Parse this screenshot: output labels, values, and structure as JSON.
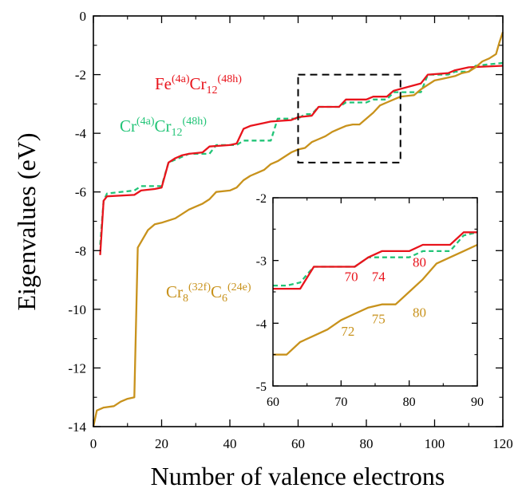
{
  "colors": {
    "fe": "#e8141c",
    "cr": "#22c477",
    "crc": "#c8921c",
    "axis": "#000000"
  },
  "labels": {
    "fe": {
      "main": "Fe",
      "sup1": "(4a)",
      "main2": "Cr",
      "sub2": "12",
      "sup2": "(48h)"
    },
    "cr": {
      "main": "Cr",
      "sup1": "(4a)",
      "main2": "Cr",
      "sub2": "12",
      "sup2": "(48h)"
    },
    "crc": {
      "main": "Cr",
      "sub1": "8",
      "sup1": "(32f)",
      "main2": "C",
      "sub2": "6",
      "sup2": "(24e)"
    }
  },
  "chart_data": [
    {
      "type": "line",
      "xlabel": "Number of valence electrons",
      "ylabel": "Eigenvalues (eV)",
      "xlim": [
        0,
        120
      ],
      "ylim": [
        -14,
        0
      ],
      "xticks": [
        0,
        20,
        40,
        60,
        80,
        100,
        120
      ],
      "yticks": [
        0,
        -2,
        -4,
        -6,
        -8,
        -10,
        -12,
        -14
      ],
      "highlight_box": {
        "x": [
          60,
          90
        ],
        "y": [
          -5,
          -2
        ]
      },
      "series": [
        {
          "name": "Cr(4a)Cr12(48h)",
          "style": "dashed",
          "color": "#22c477",
          "x": [
            2,
            3,
            4,
            12,
            14,
            20,
            22,
            26,
            28,
            34,
            36,
            42,
            44,
            52,
            54,
            60,
            62,
            64,
            66,
            72,
            74,
            80,
            82,
            86,
            88,
            96,
            98,
            104,
            106,
            110,
            112,
            120
          ],
          "y": [
            -7.8,
            -6.3,
            -6.05,
            -5.95,
            -5.8,
            -5.8,
            -5.0,
            -4.8,
            -4.7,
            -4.7,
            -4.4,
            -4.4,
            -4.25,
            -4.25,
            -3.5,
            -3.5,
            -3.35,
            -3.35,
            -3.1,
            -3.1,
            -2.95,
            -2.95,
            -2.85,
            -2.85,
            -2.6,
            -2.6,
            -2.0,
            -2.0,
            -1.9,
            -1.9,
            -1.7,
            -1.6
          ]
        },
        {
          "name": "Fe(4a)Cr12(48h)",
          "style": "solid",
          "color": "#e8141c",
          "x": [
            2,
            3,
            4,
            12,
            14,
            18,
            20,
            22,
            24,
            26,
            28,
            32,
            34,
            40,
            42,
            44,
            46,
            50,
            52,
            58,
            60,
            64,
            66,
            72,
            74,
            80,
            82,
            86,
            88,
            96,
            98,
            104,
            106,
            110,
            120
          ],
          "y": [
            -8.15,
            -6.3,
            -6.15,
            -6.1,
            -5.95,
            -5.9,
            -5.85,
            -5.0,
            -4.85,
            -4.75,
            -4.7,
            -4.65,
            -4.45,
            -4.4,
            -4.35,
            -3.85,
            -3.75,
            -3.65,
            -3.6,
            -3.55,
            -3.45,
            -3.4,
            -3.1,
            -3.1,
            -2.85,
            -2.85,
            -2.75,
            -2.75,
            -2.55,
            -2.3,
            -2.0,
            -1.95,
            -1.85,
            -1.75,
            -1.7
          ]
        },
        {
          "name": "Cr8(32f)C6(24e)",
          "style": "solid",
          "color": "#c8921c",
          "x": [
            0,
            1,
            3,
            6,
            8,
            10,
            12,
            13,
            14,
            16,
            18,
            20,
            24,
            26,
            28,
            30,
            32,
            34,
            36,
            40,
            42,
            44,
            46,
            48,
            50,
            52,
            54,
            56,
            58,
            60,
            62,
            64,
            66,
            68,
            70,
            72,
            74,
            76,
            78,
            80,
            82,
            84,
            86,
            88,
            90,
            94,
            96,
            98,
            100,
            102,
            104,
            106,
            108,
            110,
            112,
            114,
            116,
            118,
            119,
            120
          ],
          "y": [
            -14.0,
            -13.45,
            -13.35,
            -13.3,
            -13.15,
            -13.05,
            -13.0,
            -7.9,
            -7.7,
            -7.3,
            -7.1,
            -7.05,
            -6.9,
            -6.75,
            -6.6,
            -6.5,
            -6.4,
            -6.25,
            -6.0,
            -5.95,
            -5.85,
            -5.6,
            -5.45,
            -5.35,
            -5.25,
            -5.05,
            -4.95,
            -4.8,
            -4.65,
            -4.55,
            -4.5,
            -4.3,
            -4.2,
            -4.1,
            -3.95,
            -3.85,
            -3.75,
            -3.7,
            -3.7,
            -3.5,
            -3.3,
            -3.05,
            -2.95,
            -2.85,
            -2.75,
            -2.7,
            -2.5,
            -2.35,
            -2.2,
            -2.15,
            -2.1,
            -2.05,
            -1.95,
            -1.9,
            -1.75,
            -1.55,
            -1.45,
            -1.3,
            -0.9,
            -0.55
          ]
        }
      ],
      "annotations": []
    },
    {
      "type": "line",
      "inset": true,
      "xlim": [
        60,
        90
      ],
      "ylim": [
        -5,
        -2
      ],
      "xticks": [
        60,
        70,
        80,
        90
      ],
      "yticks": [
        -2,
        -3,
        -4,
        -5
      ],
      "series": [
        {
          "name": "Cr(4a)Cr12(48h)",
          "style": "dashed",
          "color": "#22c477",
          "x": [
            60,
            62,
            64,
            66,
            72,
            74,
            80,
            82,
            86,
            88,
            90
          ],
          "y": [
            -3.4,
            -3.4,
            -3.35,
            -3.1,
            -3.1,
            -2.95,
            -2.95,
            -2.85,
            -2.85,
            -2.6,
            -2.55
          ]
        },
        {
          "name": "Fe(4a)Cr12(48h)",
          "style": "solid",
          "color": "#e8141c",
          "x": [
            60,
            64,
            66,
            72,
            74,
            76,
            80,
            82,
            86,
            88,
            90
          ],
          "y": [
            -3.45,
            -3.45,
            -3.1,
            -3.1,
            -2.95,
            -2.85,
            -2.85,
            -2.75,
            -2.75,
            -2.55,
            -2.55
          ]
        },
        {
          "name": "Cr8(32f)C6(24e)",
          "style": "solid",
          "color": "#c8921c",
          "x": [
            60,
            62,
            64,
            66,
            68,
            70,
            72,
            74,
            76,
            78,
            80,
            82,
            84,
            86,
            88,
            90
          ],
          "y": [
            -4.5,
            -4.5,
            -4.3,
            -4.2,
            -4.1,
            -3.95,
            -3.85,
            -3.75,
            -3.7,
            -3.7,
            -3.5,
            -3.3,
            -3.05,
            -2.95,
            -2.85,
            -2.75
          ]
        }
      ],
      "annotations": [
        {
          "text": "70",
          "x": 71.5,
          "y": -3.33,
          "color": "#e8141c"
        },
        {
          "text": "74",
          "x": 75.5,
          "y": -3.33,
          "color": "#e8141c"
        },
        {
          "text": "80",
          "x": 81.5,
          "y": -3.1,
          "color": "#e8141c"
        },
        {
          "text": "72",
          "x": 71,
          "y": -4.2,
          "color": "#c8921c"
        },
        {
          "text": "75",
          "x": 75.5,
          "y": -4.0,
          "color": "#c8921c"
        },
        {
          "text": "80",
          "x": 81.5,
          "y": -3.9,
          "color": "#c8921c"
        }
      ]
    }
  ]
}
